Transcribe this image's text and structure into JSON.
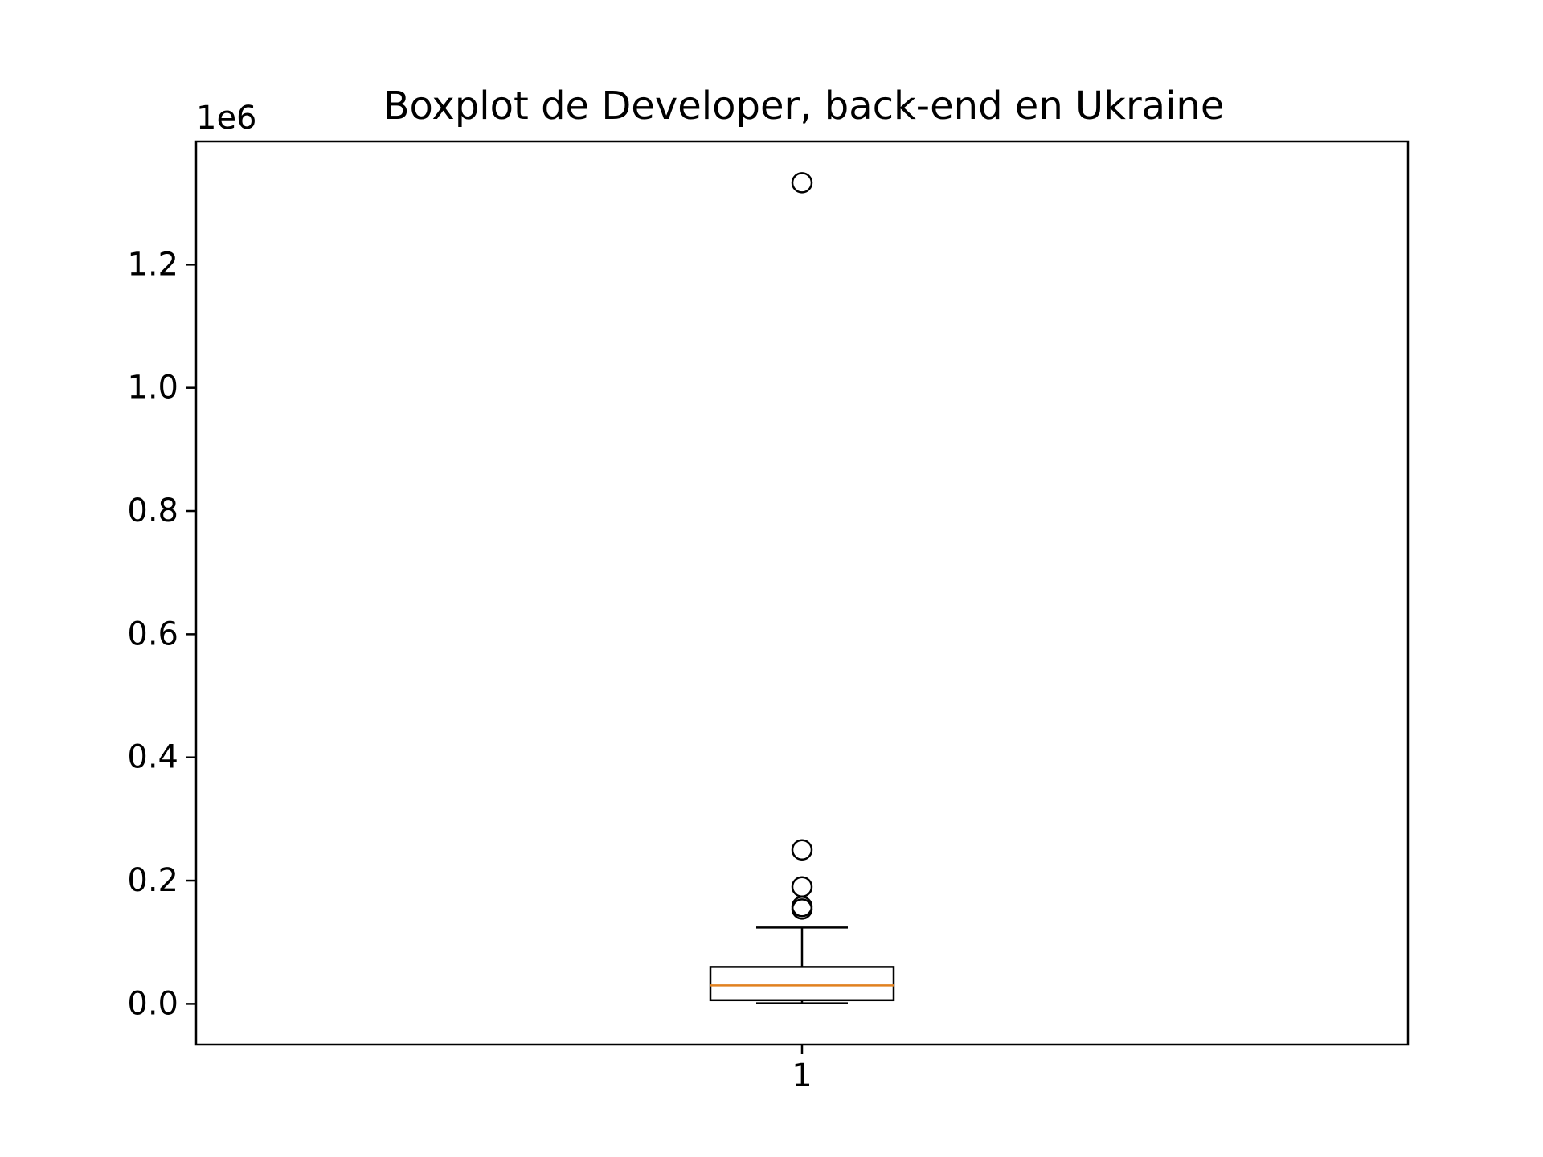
{
  "chart_data": {
    "type": "boxplot",
    "title": "Boxplot de Developer, back-end en Ukraine",
    "xlabel": "",
    "ylabel": "",
    "y_offset_label": "1e6",
    "y_scale_factor": 1000000,
    "ylim": [
      -0.066,
      1.4
    ],
    "y_ticks": [
      0.0,
      0.2,
      0.4,
      0.6,
      0.8,
      1.0,
      1.2
    ],
    "y_tick_labels": [
      "0.0",
      "0.2",
      "0.4",
      "0.6",
      "0.8",
      "1.0",
      "1.2"
    ],
    "categories": [
      "1"
    ],
    "boxes": [
      {
        "category": "1",
        "whisker_low": 0.001,
        "q1": 0.006,
        "median": 0.03,
        "q3": 0.06,
        "whisker_high": 0.124,
        "outliers": [
          0.154,
          0.158,
          0.19,
          0.25,
          1.333
        ]
      }
    ],
    "grid": false,
    "colors": {
      "box": "#000000",
      "median": "#e1811f",
      "outlier": "#000000"
    }
  }
}
